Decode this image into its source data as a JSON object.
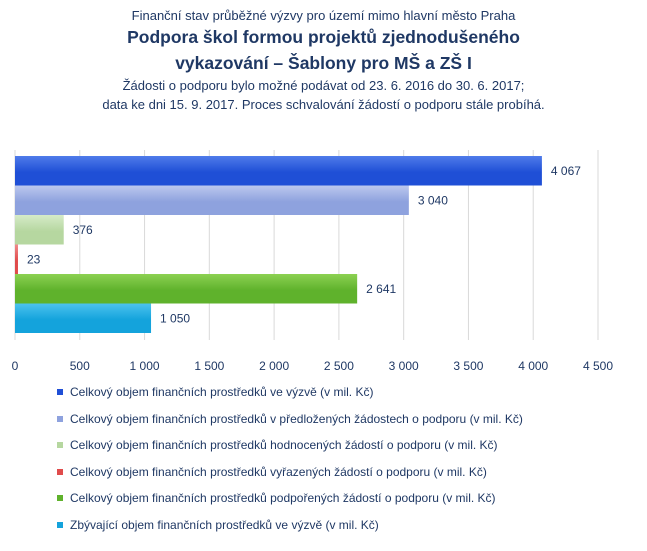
{
  "header": {
    "subtitle": "Finanční stav průběžné výzvy pro území mimo hlavní město Praha",
    "title_line1": "Podpora škol formou projektů zjednodušeného",
    "title_line2": "vykazování – Šablony pro MŠ a ZŠ I",
    "note_line1": "Žádosti o podporu bylo možné podávat od 23. 6. 2016 do 30. 6. 2017;",
    "note_line2": "data ke dni 15. 9. 2017. Proces schvalování žádostí o podporu stále probíhá."
  },
  "chart_data": {
    "type": "bar",
    "orientation": "horizontal",
    "xlim": [
      0,
      4500
    ],
    "x_ticks": [
      0,
      500,
      1000,
      1500,
      2000,
      2500,
      3000,
      3500,
      4000,
      4500
    ],
    "x_tick_labels": [
      "0",
      "500",
      "1 000",
      "1 500",
      "2 000",
      "2 500",
      "3 000",
      "3 500",
      "4 000",
      "4 500"
    ],
    "grid": "vertical",
    "legend_position": "bottom",
    "series": [
      {
        "name": "Celkový objem finančních prostředků ve výzvě (v mil. Kč)",
        "value": 4067,
        "label": "4 067",
        "color": "#1f4fd6",
        "color_light": "#4f7bea"
      },
      {
        "name": "Celkový objem finančních prostředků v předložených žádostech o podporu (v mil. Kč)",
        "value": 3040,
        "label": "3 040",
        "color": "#8ea2de",
        "color_light": "#bcc8ee"
      },
      {
        "name": "Celkový objem finančních prostředků hodnocených žádostí o podporu (v mil. Kč)",
        "value": 376,
        "label": "376",
        "color": "#b6d7a0",
        "color_light": "#d6ebc8"
      },
      {
        "name": "Celkový objem finančních prostředků vyřazených žádostí o podporu (v mil. Kč)",
        "value": 23,
        "label": "23",
        "color": "#e04b4b",
        "color_light": "#f08a8a"
      },
      {
        "name": "Celkový objem finančních prostředků podpořených žádostí o podporu (v mil. Kč)",
        "value": 2641,
        "label": "2 641",
        "color": "#5fb22c",
        "color_light": "#8cd152"
      },
      {
        "name": "Zbývající objem finančních prostředků ve výzvě (v mil. Kč)",
        "value": 1050,
        "label": "1 050",
        "color": "#14a3dc",
        "color_light": "#4cc3ee"
      }
    ]
  }
}
